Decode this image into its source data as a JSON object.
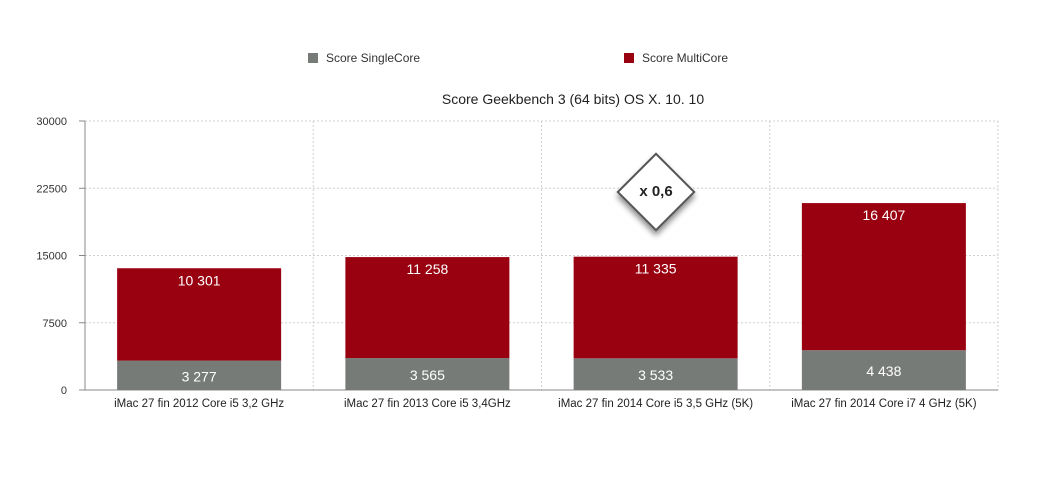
{
  "legend": {
    "single_label": "Score SingleCore",
    "multi_label": "Score MultiCore"
  },
  "badge": {
    "text": "x 0,6"
  },
  "chart_data": {
    "type": "bar",
    "stacked": true,
    "title": "Score Geekbench 3 (64 bits) OS X. 10. 10",
    "categories": [
      "iMac 27 fin 2012 Core i5 3,2 GHz",
      "iMac 27 fin 2013 Core i5 3,4GHz",
      "iMac 27 fin 2014 Core i5 3,5 GHz (5K)",
      "iMac 27 fin 2014 Core i7 4 GHz (5K)"
    ],
    "series": [
      {
        "name": "Score SingleCore",
        "color": "#777b77",
        "values": [
          3277,
          3565,
          3533,
          4438
        ],
        "labels": [
          "3 277",
          "3 565",
          "3 533",
          "4 438"
        ]
      },
      {
        "name": "Score MultiCore",
        "color": "#990010",
        "values": [
          10301,
          11258,
          11335,
          16407
        ],
        "labels": [
          "10 301",
          "11 258",
          "11 335",
          "16 407"
        ]
      }
    ],
    "ylim": [
      0,
      30000
    ],
    "yticks": [
      0,
      7500,
      15000,
      22500,
      30000
    ],
    "ytick_labels": [
      "0",
      "7500",
      "15000",
      "22500",
      "30000"
    ],
    "grid": true,
    "legend_position": "top"
  }
}
